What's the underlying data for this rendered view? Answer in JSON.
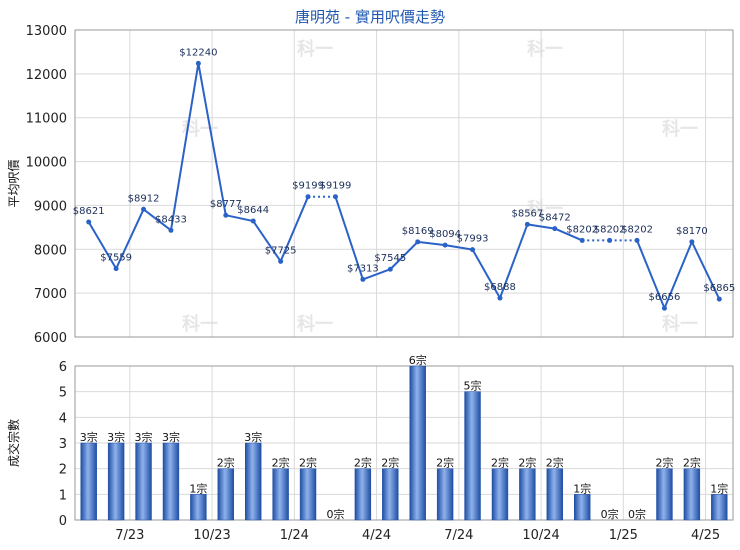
{
  "title": "唐明苑 - 實用呎價走勢",
  "watermark": "科一",
  "colors": {
    "line": "#2a62c8",
    "bar_dark": "#1f4ea3",
    "bar_light": "#8fb2ec",
    "grid": "#d9d9d9",
    "frame": "#9a9a9a"
  },
  "chart_data": [
    {
      "type": "line",
      "ylabel": "平均呎價",
      "ylim": [
        6000,
        13000
      ],
      "yticks": [
        6000,
        7000,
        8000,
        9000,
        10000,
        11000,
        12000,
        13000
      ],
      "x_ticks": [
        "7/23",
        "10/23",
        "1/24",
        "4/24",
        "7/24",
        "10/24",
        "1/25",
        "4/25"
      ],
      "grid": true,
      "series": [
        {
          "values": [
            8621,
            7559,
            8912,
            8433,
            12240,
            8777,
            8644,
            7725,
            9199,
            9199,
            7313,
            7545,
            8169,
            8094,
            7993,
            6888,
            8567,
            8472,
            8202,
            8202,
            8202,
            6656,
            8170,
            6865
          ],
          "labels": [
            "$8621",
            "$7559",
            "$8912",
            "$8433",
            "$12240",
            "$8777",
            "$8644",
            "$7725",
            "$9199",
            "$9199",
            "$7313",
            "$7545",
            "$8169",
            "$8094",
            "$7993",
            "$6888",
            "$8567",
            "$8472",
            "$8202",
            "$8202",
            "$8202",
            "$6656",
            "$8170",
            "$6865"
          ],
          "label_shown": [
            true,
            true,
            true,
            true,
            true,
            true,
            true,
            true,
            true,
            true,
            true,
            true,
            true,
            true,
            true,
            true,
            true,
            true,
            true,
            true,
            true,
            true,
            true,
            true
          ],
          "dotted_after": [
            8,
            18,
            19
          ]
        }
      ]
    },
    {
      "type": "bar",
      "ylabel": "成交宗數",
      "ylim": [
        0,
        6
      ],
      "yticks": [
        0,
        1,
        2,
        3,
        4,
        5,
        6
      ],
      "x_ticks": [
        "7/23",
        "10/23",
        "1/24",
        "4/24",
        "7/24",
        "10/24",
        "1/25",
        "4/25"
      ],
      "grid": true,
      "values": [
        3,
        3,
        3,
        3,
        1,
        2,
        3,
        2,
        2,
        0,
        2,
        2,
        6,
        2,
        5,
        2,
        2,
        2,
        1,
        0,
        0,
        2,
        2,
        1
      ],
      "labels": [
        "3宗",
        "3宗",
        "3宗",
        "3宗",
        "1宗",
        "2宗",
        "3宗",
        "2宗",
        "2宗",
        "0宗",
        "2宗",
        "2宗",
        "6宗",
        "2宗",
        "5宗",
        "2宗",
        "2宗",
        "2宗",
        "1宗",
        "0宗",
        "0宗",
        "2宗",
        "2宗",
        "1宗"
      ]
    }
  ]
}
